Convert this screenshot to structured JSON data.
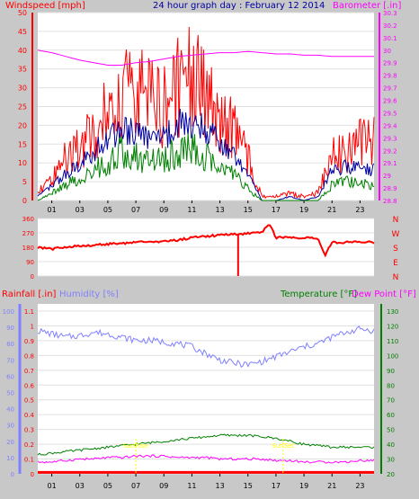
{
  "chart_data": [
    {
      "type": "line",
      "title": "24 hour graph day : February 12 2014",
      "left_axis_label": "Windspeed [mph]",
      "right_axis_label": "Barometer [.in]",
      "x_tick_labels": [
        "01",
        "03",
        "05",
        "07",
        "09",
        "11",
        "13",
        "15",
        "17",
        "19",
        "21",
        "23"
      ],
      "left_ylim": [
        0,
        50
      ],
      "left_ticks": [
        "0",
        "5",
        "10",
        "15",
        "20",
        "25",
        "30",
        "35",
        "40",
        "45",
        "50"
      ],
      "right_ylim": [
        28.8,
        30.3
      ],
      "right_ticks": [
        "28.8",
        "28.9",
        "29",
        "29.1",
        "29.2",
        "29.3",
        "29.4",
        "29.5",
        "29.6",
        "29.7",
        "29.8",
        "29.9",
        "30",
        "30.1",
        "30.2",
        "30.3"
      ],
      "series": [
        {
          "name": "Windspeed [mph]",
          "color": "#ff0000",
          "x": [
            0,
            1,
            2,
            3,
            4,
            5,
            6,
            7,
            8,
            9,
            10,
            11,
            12,
            13,
            14,
            15,
            16,
            17,
            18,
            19,
            20,
            21,
            22,
            23,
            24
          ],
          "y": [
            2,
            6,
            11,
            14,
            18,
            24,
            28,
            29,
            26,
            25,
            30,
            33,
            29,
            22,
            19,
            11,
            1,
            1,
            2,
            1,
            2,
            12,
            12,
            15,
            16
          ]
        },
        {
          "name": "Wind average",
          "color": "#0000a0",
          "x": [
            0,
            1,
            2,
            3,
            4,
            5,
            6,
            7,
            8,
            9,
            10,
            11,
            12,
            13,
            14,
            15,
            16,
            17,
            18,
            19,
            20,
            21,
            22,
            23,
            24
          ],
          "y": [
            1,
            4,
            7,
            10,
            13,
            16,
            19,
            18,
            16,
            17,
            20,
            21,
            19,
            15,
            12,
            7,
            0,
            0,
            1,
            0,
            1,
            8,
            9,
            9,
            8
          ]
        },
        {
          "name": "Wind gust",
          "color": "#008000",
          "x": [
            0,
            1,
            2,
            3,
            4,
            5,
            6,
            7,
            8,
            9,
            10,
            11,
            12,
            13,
            14,
            15,
            16,
            17,
            18,
            19,
            20,
            21,
            22,
            23,
            24
          ],
          "y": [
            0,
            2,
            4,
            6,
            8,
            10,
            13,
            12,
            10,
            11,
            13,
            14,
            12,
            9,
            7,
            3,
            0,
            0,
            0,
            0,
            0,
            4,
            5,
            5,
            4
          ]
        },
        {
          "name": "Barometer [.in]",
          "color": "#ff00ff",
          "x": [
            0,
            1,
            2,
            3,
            4,
            5,
            6,
            7,
            8,
            9,
            10,
            11,
            12,
            13,
            14,
            15,
            16,
            17,
            18,
            19,
            20,
            21,
            22,
            23,
            24
          ],
          "y": [
            30.0,
            29.98,
            29.95,
            29.92,
            29.9,
            29.88,
            29.88,
            29.9,
            29.91,
            29.93,
            29.95,
            29.96,
            29.97,
            29.98,
            29.98,
            29.99,
            29.98,
            29.97,
            29.97,
            29.96,
            29.96,
            29.95,
            29.95,
            29.95,
            29.95
          ]
        }
      ]
    },
    {
      "type": "scatter",
      "name": "Wind direction",
      "left_ticks": [
        "360",
        "270",
        "180",
        "90",
        "0"
      ],
      "right_ticks": [
        "N",
        "W",
        "S",
        "E",
        "N"
      ],
      "ylim": [
        0,
        360
      ],
      "series": [
        {
          "name": "Wind direction",
          "color": "#ff0000",
          "x": [
            0,
            1,
            2,
            3,
            4,
            5,
            6,
            7,
            8,
            9,
            10,
            11,
            12,
            13,
            14,
            15,
            16,
            16.5,
            17,
            18,
            19,
            20,
            20.5,
            21,
            22,
            23,
            24
          ],
          "y": [
            180,
            170,
            180,
            190,
            195,
            200,
            205,
            210,
            215,
            215,
            225,
            240,
            250,
            255,
            262,
            265,
            270,
            330,
            240,
            240,
            240,
            240,
            130,
            210,
            210,
            215,
            210
          ]
        }
      ]
    },
    {
      "type": "line",
      "top_labels": {
        "rainfall": "Rainfall [.in]",
        "humidity": "Humidity [%]",
        "temperature": "Temperature [°F]",
        "dewpoint": "Dew Point [°F]"
      },
      "x_tick_labels": [
        "01",
        "03",
        "05",
        "07",
        "09",
        "11",
        "13",
        "15",
        "17",
        "19",
        "21",
        "23"
      ],
      "rain_ticks": [
        "0",
        "0.1",
        "0.2",
        "0.3",
        "0.4",
        "0.5",
        "0.6",
        "0.7",
        "0.8",
        "0.9",
        "1",
        "1.1"
      ],
      "humidity_ticks": [
        "0",
        "10",
        "20",
        "30",
        "40",
        "50",
        "60",
        "70",
        "80",
        "90",
        "100"
      ],
      "temp_ticks": [
        "20",
        "30",
        "40",
        "50",
        "60",
        "70",
        "80",
        "90",
        "100",
        "110",
        "120",
        "130"
      ],
      "sun_markers": [
        {
          "label": "SunRise",
          "hour": 7
        },
        {
          "label": "SunSet",
          "hour": 17.5
        }
      ],
      "series": [
        {
          "name": "Humidity [%]",
          "color": "#8080ff",
          "x": [
            0,
            1,
            2,
            3,
            4,
            5,
            6,
            7,
            8,
            9,
            10,
            11,
            12,
            13,
            14,
            15,
            16,
            17,
            18,
            19,
            20,
            21,
            22,
            23,
            24
          ],
          "y": [
            88,
            86,
            84,
            85,
            87,
            86,
            84,
            82,
            82,
            81,
            80,
            78,
            74,
            70,
            68,
            67,
            69,
            72,
            75,
            78,
            80,
            84,
            87,
            89,
            88
          ]
        },
        {
          "name": "Temperature [°F]",
          "color": "#008000",
          "x": [
            0,
            1,
            2,
            3,
            4,
            5,
            6,
            7,
            8,
            9,
            10,
            11,
            12,
            13,
            14,
            15,
            16,
            17,
            18,
            19,
            20,
            21,
            22,
            23,
            24
          ],
          "y": [
            33,
            34,
            35,
            36,
            37,
            38,
            39,
            40,
            41,
            42,
            43,
            44,
            45,
            46,
            46,
            46,
            45,
            44,
            42,
            40,
            39,
            38,
            38,
            38,
            38
          ]
        },
        {
          "name": "Dew Point [°F]",
          "color": "#ff00ff",
          "x": [
            0,
            1,
            2,
            3,
            4,
            5,
            6,
            7,
            8,
            9,
            10,
            11,
            12,
            13,
            14,
            15,
            16,
            17,
            18,
            19,
            20,
            21,
            22,
            23,
            24
          ],
          "y": [
            28,
            28,
            29,
            30,
            30,
            31,
            31,
            32,
            32,
            32,
            31,
            31,
            31,
            30,
            30,
            30,
            30,
            29,
            29,
            28,
            28,
            28,
            28,
            29,
            29
          ]
        },
        {
          "name": "Rainfall [.in]",
          "color": "#ff0000",
          "x": [
            0,
            24
          ],
          "y": [
            0.01,
            0.01
          ]
        }
      ]
    }
  ]
}
